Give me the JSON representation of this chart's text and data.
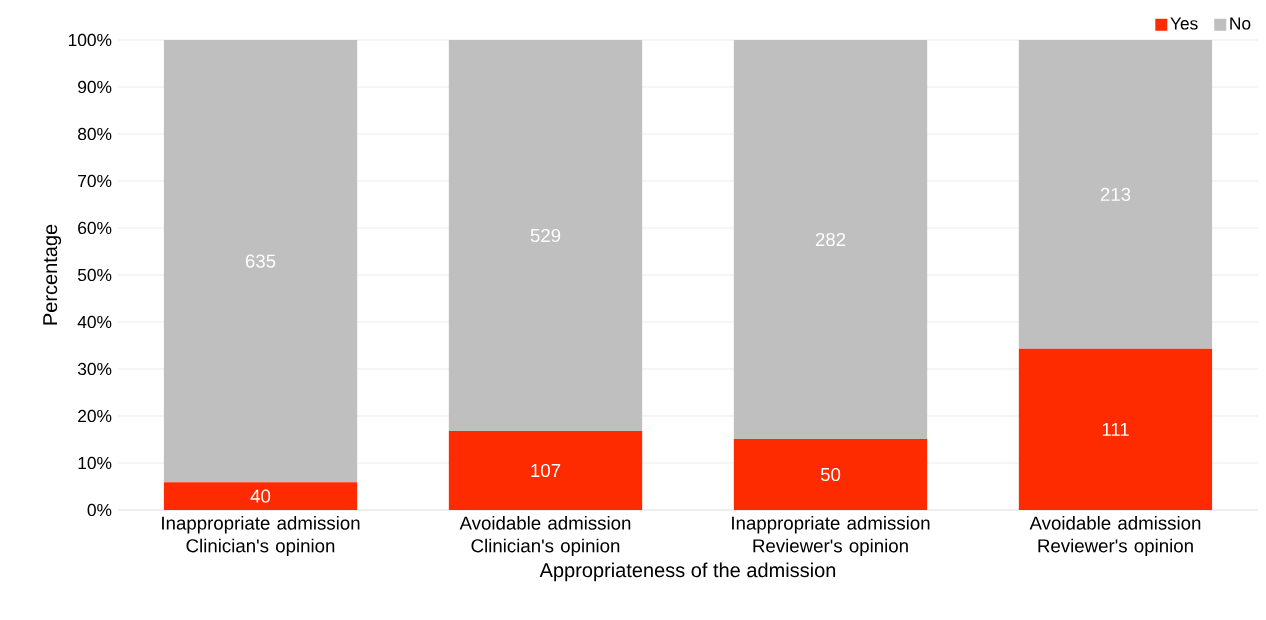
{
  "chart_data": {
    "type": "bar",
    "stacked": true,
    "xlabel": "Appropriateness of the admission",
    "ylabel": "Percentage",
    "categories": [
      "Inappropriate admission Clinician's opinion",
      "Avoidable admission Clinician's opinion",
      "Inappropriate admission Reviewer's opinion",
      "Avoidable admission Reviewer's opinion"
    ],
    "series": [
      {
        "name": "Yes",
        "color": "#ff2b00",
        "values": [
          5.9,
          16.8,
          15.1,
          34.3
        ]
      },
      {
        "name": "No",
        "color": "#bfbfbf",
        "values": [
          94.1,
          83.2,
          84.9,
          65.7
        ]
      }
    ],
    "annotations": [
      "40",
      "107",
      "50",
      "111",
      "635",
      "529",
      "282",
      "213"
    ],
    "ylim": [
      0,
      100
    ],
    "yticks": [
      {
        "value": 0,
        "label": "0%"
      },
      {
        "value": 10,
        "label": "10%"
      },
      {
        "value": 20,
        "label": "20%"
      },
      {
        "value": 30,
        "label": "30%"
      },
      {
        "value": 40,
        "label": "40%"
      },
      {
        "value": 50,
        "label": "50%"
      },
      {
        "value": 60,
        "label": "60%"
      },
      {
        "value": 70,
        "label": "70%"
      },
      {
        "value": 80,
        "label": "80%"
      },
      {
        "value": 90,
        "label": "90%"
      },
      {
        "value": 100,
        "label": "100%"
      }
    ],
    "grid": "y",
    "legend": "top right"
  }
}
